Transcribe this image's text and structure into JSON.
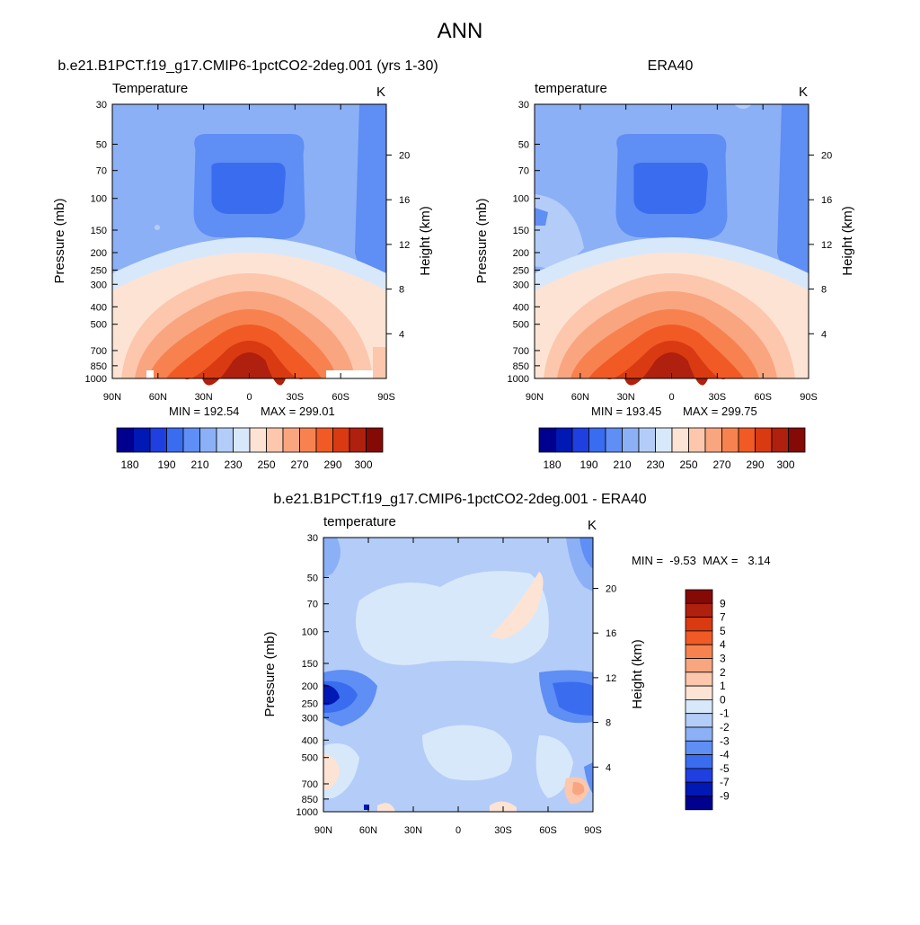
{
  "figure_title": "ANN",
  "colors": {
    "temperature_levels": [
      "#00008f",
      "#0018b4",
      "#1f3fe0",
      "#3a6cf0",
      "#5f8ef4",
      "#8cb0f6",
      "#b3cdf8",
      "#d8e8fb",
      "#fde3d4",
      "#fcc7ac",
      "#f9a580",
      "#f7824f",
      "#f15a24",
      "#d93a12",
      "#b0200e",
      "#850a05"
    ],
    "difference_levels": [
      "#00008f",
      "#0018b4",
      "#1f3fe0",
      "#3a6cf0",
      "#5f8ef4",
      "#8cb0f6",
      "#b3cdf8",
      "#d8e8fb",
      "#fde3d4",
      "#fcc7ac",
      "#f9a580",
      "#f7824f",
      "#f15a24",
      "#d93a12",
      "#b0200e",
      "#850a05"
    ]
  },
  "chart_data": [
    {
      "type": "heatmap",
      "title": "b.e21.B1PCT.f19_g17.CMIP6-1pctCO2-2deg.001 (yrs 1-30)",
      "variable": "Temperature",
      "units": "K",
      "xlabel": "",
      "ylabel": "Pressure (mb)",
      "y2label": "Height (km)",
      "x_ticks": [
        "90N",
        "60N",
        "30N",
        "0",
        "30S",
        "60S",
        "90S"
      ],
      "y_ticks": [
        30,
        50,
        70,
        100,
        150,
        200,
        250,
        300,
        400,
        500,
        700,
        850,
        1000
      ],
      "y2_ticks": [
        4,
        8,
        12,
        16,
        20
      ],
      "min_label": "MIN = 192.54",
      "max_label": "MAX = 299.01",
      "colorbar_labels": [
        "180",
        "190",
        "210",
        "230",
        "250",
        "270",
        "290",
        "300"
      ],
      "bounds": [
        "180",
        "190",
        "210",
        "230",
        "250",
        "270",
        "290",
        "300"
      ],
      "offsets": {}
    },
    {
      "type": "heatmap",
      "title": "ERA40",
      "variable": "temperature",
      "units": "K",
      "xlabel": "",
      "ylabel": "Pressure (mb)",
      "y2label": "Height (km)",
      "x_ticks": [
        "90N",
        "60N",
        "30N",
        "0",
        "30S",
        "60S",
        "90S"
      ],
      "y_ticks": [
        30,
        50,
        70,
        100,
        150,
        200,
        250,
        300,
        400,
        500,
        700,
        850,
        1000
      ],
      "y2_ticks": [
        4,
        8,
        12,
        16,
        20
      ],
      "min_label": "MIN = 193.45",
      "max_label": "MAX = 299.75",
      "colorbar_labels": [
        "180",
        "190",
        "210",
        "230",
        "250",
        "270",
        "290",
        "300"
      ]
    },
    {
      "type": "heatmap",
      "title": "b.e21.B1PCT.f19_g17.CMIP6-1pctCO2-2deg.001 - ERA40",
      "variable": "temperature",
      "units": "K",
      "xlabel": "",
      "ylabel": "Pressure (mb)",
      "y2label": "Height (km)",
      "x_ticks": [
        "90N",
        "60N",
        "30N",
        "0",
        "30S",
        "60S",
        "90S"
      ],
      "y_ticks": [
        30,
        50,
        70,
        100,
        150,
        200,
        250,
        300,
        400,
        500,
        700,
        850,
        1000
      ],
      "y2_ticks": [
        4,
        8,
        12,
        16,
        20
      ],
      "minmax_label": "MIN =  -9.53  MAX =   3.14",
      "colorbar_labels": [
        "9",
        "7",
        "5",
        "4",
        "3",
        "2",
        "1",
        "0",
        "-1",
        "-2",
        "-3",
        "-4",
        "-5",
        "-7",
        "-9"
      ]
    }
  ]
}
